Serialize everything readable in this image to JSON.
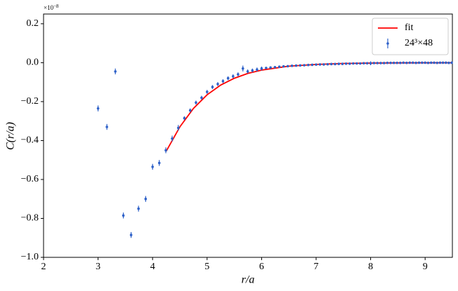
{
  "chart_data": {
    "type": "errorbar",
    "xlabel": "r/a",
    "ylabel": "C(r/a)",
    "y_offset": {
      "base": "×10",
      "exponent": "−8"
    },
    "xlim": [
      2,
      9.5
    ],
    "ylim": [
      -1.0,
      0.25
    ],
    "xticks": [
      2,
      3,
      4,
      5,
      6,
      7,
      8,
      9
    ],
    "yticks": [
      {
        "value": 0.2,
        "label": "0.2"
      },
      {
        "value": 0,
        "label": "0.0"
      },
      {
        "value": -0.2,
        "label": "−0.2"
      },
      {
        "value": -0.4,
        "label": "−0.4"
      },
      {
        "value": -0.6,
        "label": "−0.6"
      },
      {
        "value": -0.8,
        "label": "−0.8"
      },
      {
        "value": -1.0,
        "label": "−1.0"
      }
    ],
    "legend": "upper right",
    "series": [
      {
        "name": "fit",
        "type": "line",
        "color": "#ff0000",
        "x": [
          4.25,
          4.5,
          4.75,
          5,
          5.25,
          5.5,
          5.75,
          6,
          6.5,
          7,
          7.5,
          8,
          8.5,
          9,
          9.5
        ],
        "values": [
          -0.455,
          -0.33,
          -0.235,
          -0.165,
          -0.115,
          -0.08,
          -0.055,
          -0.038,
          -0.018,
          -0.009,
          -0.004,
          -0.002,
          -0.001,
          -0.0005,
          -0.0002
        ]
      },
      {
        "name": "24³×48",
        "type": "errorbar",
        "color": "#2f62c9",
        "x": [
          3,
          3.162,
          3.317,
          3.464,
          3.606,
          3.742,
          3.873,
          4,
          4.123,
          4.243,
          4.359,
          4.472,
          4.583,
          4.69,
          4.796,
          4.899,
          5,
          5.099,
          5.196,
          5.292,
          5.385,
          5.477,
          5.568,
          5.657,
          5.745,
          5.831,
          5.916,
          6,
          6.083,
          6.164,
          6.245,
          6.325,
          6.403,
          6.481,
          6.557,
          6.633,
          6.708,
          6.782,
          6.856,
          6.928,
          7,
          7.071,
          7.141,
          7.211,
          7.28,
          7.348,
          7.416,
          7.483,
          7.55,
          7.616,
          7.681,
          7.746,
          7.81,
          7.874,
          7.937,
          8,
          8.062,
          8.124,
          8.185,
          8.246,
          8.307,
          8.367,
          8.426,
          8.485,
          8.544,
          8.602,
          8.66,
          8.718,
          8.775,
          8.832,
          8.888,
          8.944,
          9,
          9.055,
          9.11,
          9.165,
          9.22,
          9.274,
          9.327,
          9.381,
          9.434,
          9.487
        ],
        "values": [
          -0.235,
          -0.33,
          -0.045,
          -0.785,
          -0.885,
          -0.75,
          -0.7,
          -0.535,
          -0.515,
          -0.45,
          -0.39,
          -0.335,
          -0.285,
          -0.245,
          -0.205,
          -0.18,
          -0.15,
          -0.125,
          -0.11,
          -0.095,
          -0.08,
          -0.07,
          -0.06,
          -0.03,
          -0.045,
          -0.04,
          -0.035,
          -0.03,
          -0.027,
          -0.025,
          -0.023,
          -0.021,
          -0.019,
          -0.018,
          -0.016,
          -0.015,
          -0.014,
          -0.013,
          -0.012,
          -0.011,
          -0.01,
          -0.009,
          -0.009,
          -0.008,
          -0.007,
          -0.007,
          -0.006,
          -0.006,
          -0.005,
          -0.005,
          -0.004,
          -0.004,
          -0.004,
          -0.003,
          -0.003,
          -0.003,
          -0.002,
          -0.002,
          -0.002,
          -0.002,
          -0.001,
          -0.001,
          -0.001,
          -0.001,
          -0.001,
          0,
          -0.001,
          0,
          0,
          -0.001,
          0,
          0,
          0,
          -0.001,
          0,
          0,
          -0.001,
          0,
          0,
          0,
          -0.001,
          0
        ],
        "errors": [
          0.015,
          0.015,
          0.015,
          0.015,
          0.015,
          0.015,
          0.015,
          0.015,
          0.015,
          0.015,
          0.015,
          0.015,
          0.01,
          0.01,
          0.01,
          0.01,
          0.01,
          0.01,
          0.01,
          0.01,
          0.01,
          0.01,
          0.01,
          0.015,
          0.01,
          0.01,
          0.01,
          0.01,
          0.005,
          0.005,
          0.005,
          0.005,
          0.005,
          0.005,
          0.005,
          0.005,
          0.005,
          0.005,
          0.005,
          0.005,
          0.005,
          0.005,
          0.005,
          0.005,
          0.005,
          0.005,
          0.005,
          0.005,
          0.005,
          0.005,
          0.005,
          0.005,
          0.005,
          0.005,
          0.005,
          0.01,
          0.005,
          0.005,
          0.005,
          0.005,
          0.005,
          0.005,
          0.005,
          0.005,
          0.005,
          0.005,
          0.005,
          0.005,
          0.005,
          0.005,
          0.005,
          0.005,
          0.005,
          0.005,
          0.005,
          0.005,
          0.005,
          0.005,
          0.005,
          0.005,
          0.005,
          0.005
        ]
      }
    ]
  }
}
